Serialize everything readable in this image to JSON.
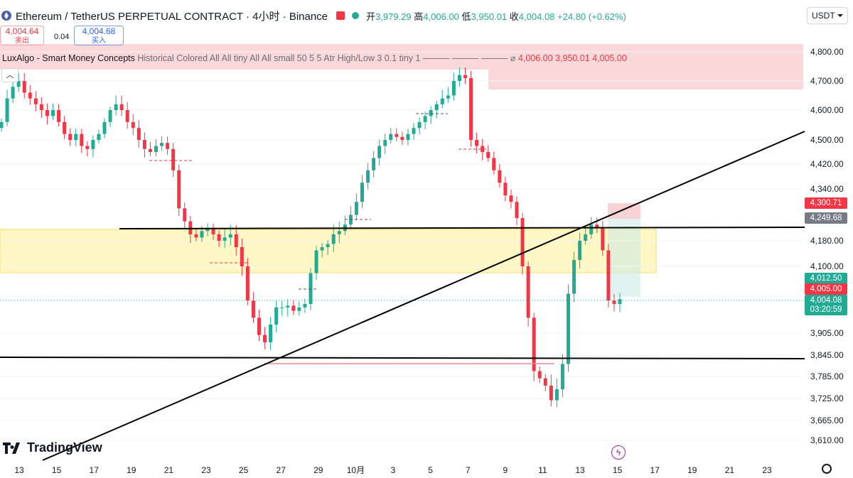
{
  "header": {
    "title": "Ethereum / TetherUS PERPETUAL CONTRACT · 4小时 · Binance",
    "ohlc": {
      "open_label": "开",
      "open": "3,979.29",
      "high_label": "高",
      "high": "4,006.00",
      "low_label": "低",
      "low": "3,950.01",
      "close_label": "收",
      "close": "4,004.08",
      "change": "+24.80 (+0.62%)"
    }
  },
  "trade": {
    "sell_price": "4,004.64",
    "sell_label": "卖出",
    "spread": "0.04",
    "buy_price": "4,004.68",
    "buy_label": "买入"
  },
  "indicator": {
    "name": "LuxAlgo - Smart Money Concepts",
    "params": "Historical Colored All All tiny All All small 50 5 5 Atr High/Low 3 0.1 tiny 1 ——— ——— ——— ⌀",
    "values": "4,006.00  3,950.01  4,005.00"
  },
  "currency_selector": "USDT",
  "brand": "TradingView",
  "colors": {
    "up": "#22ab94",
    "down": "#f23645",
    "zone_yellow": "#fff59d",
    "zone_red": "#f8c7cb"
  },
  "price_axis": {
    "ticks": [
      "4,800.00",
      "4,700.00",
      "4,600.00",
      "4,500.00",
      "4,420.00",
      "4,340.00",
      "4,180.00",
      "4,100.00",
      "3,905.00",
      "3,845.00",
      "3,785.00",
      "3,725.00",
      "3,665.00",
      "3,610.00"
    ],
    "labels": [
      {
        "text": "4,300.71",
        "color": "#f23645"
      },
      {
        "text": "4,249.68",
        "color": "#787b86"
      },
      {
        "text": "4,012.50",
        "color": "#22ab94"
      },
      {
        "text": "4,005.00",
        "color": "#f23645"
      },
      {
        "text": "4,004.08",
        "color": "#22ab94"
      },
      {
        "text": "03:20:59",
        "color": "#22ab94"
      }
    ]
  },
  "time_axis": [
    "13",
    "15",
    "17",
    "19",
    "21",
    "23",
    "25",
    "27",
    "29",
    "10月",
    "3",
    "5",
    "7",
    "9",
    "11",
    "13",
    "15",
    "17",
    "19",
    "21",
    "23"
  ],
  "chart_data": {
    "type": "candlestick",
    "scale": "piecewise (as printed ticks)",
    "candles_close": [
      4560,
      4640,
      4680,
      4700,
      4660,
      4640,
      4620,
      4600,
      4580,
      4600,
      4560,
      4520,
      4500,
      4520,
      4480,
      4470,
      4500,
      4520,
      4560,
      4600,
      4620,
      4600,
      4560,
      4540,
      4500,
      4470,
      4460,
      4480,
      4490,
      4470,
      4400,
      4280,
      4240,
      4200,
      4190,
      4210,
      4220,
      4200,
      4180,
      4190,
      4200,
      4160,
      4100,
      4000,
      3950,
      3900,
      3880,
      3930,
      3980,
      3980,
      3985,
      3970,
      3980,
      3990,
      4080,
      4150,
      4160,
      4170,
      4200,
      4210,
      4230,
      4260,
      4300,
      4360,
      4400,
      4440,
      4480,
      4500,
      4520,
      4510,
      4500,
      4520,
      4540,
      4560,
      4580,
      4600,
      4620,
      4640,
      4650,
      4700,
      4720,
      4710,
      4500,
      4480,
      4460,
      4440,
      4400,
      4360,
      4320,
      4300,
      4250,
      4100,
      3950,
      3800,
      3780,
      3760,
      3720,
      3750,
      3820,
      4020,
      4120,
      4180,
      4200,
      4230,
      4220,
      4150,
      4000,
      3990,
      4004.08
    ]
  }
}
